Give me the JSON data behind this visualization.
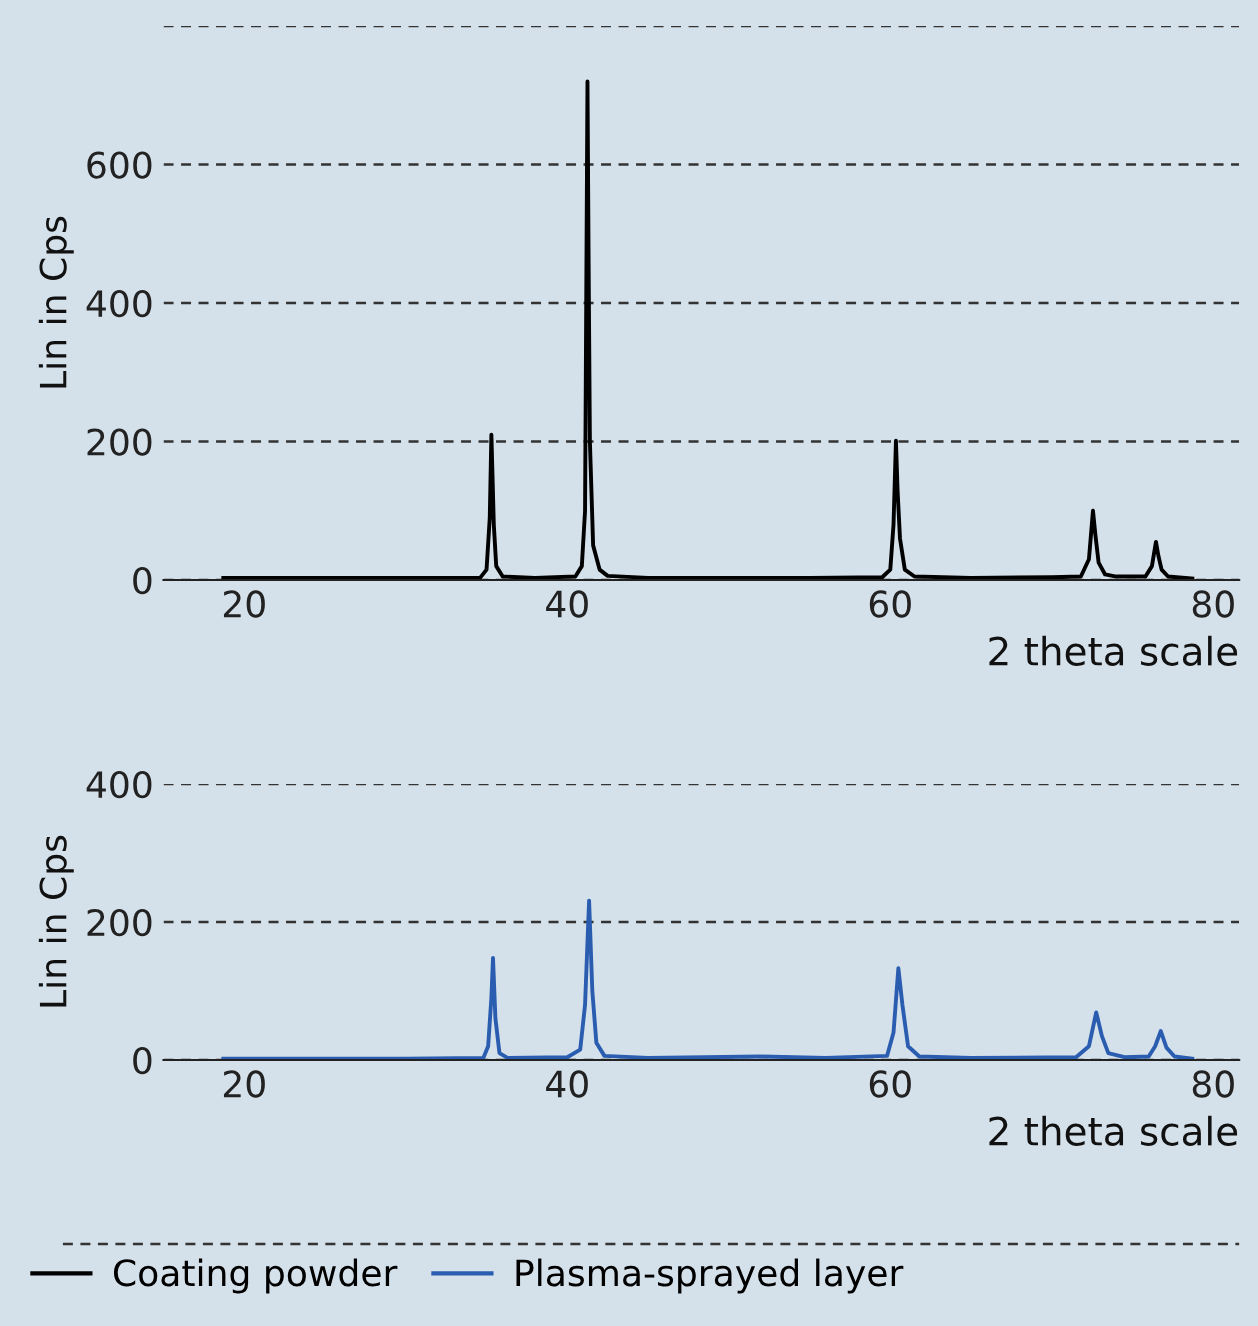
{
  "chart_data": [
    {
      "type": "line",
      "xlabel": "2 theta scale",
      "ylabel": "Lin in Cps",
      "xlim": [
        15,
        81.6
      ],
      "xticks": [
        20,
        40,
        60,
        80
      ],
      "ylim": [
        0,
        800
      ],
      "yticks": [
        0,
        200,
        400,
        600,
        {
          "value": 800,
          "label": null
        }
      ],
      "grid": "y",
      "legend": "bottom",
      "series": [
        {
          "name": "Coating powder",
          "color": "#000000",
          "x": [
            18.7,
            25,
            30,
            34.6,
            35.0,
            35.2,
            35.3,
            35.45,
            35.6,
            36.0,
            38,
            40.5,
            40.9,
            41.1,
            41.25,
            41.32,
            41.4,
            41.6,
            42.0,
            42.5,
            45,
            50,
            55,
            59.5,
            60.0,
            60.2,
            60.35,
            60.45,
            60.6,
            60.9,
            61.5,
            65,
            70,
            71.8,
            72.3,
            72.55,
            72.7,
            72.9,
            73.3,
            74,
            75.8,
            76.2,
            76.45,
            76.6,
            76.8,
            77.2,
            78.7
          ],
          "values": [
            3,
            3,
            3,
            3,
            15,
            90,
            210,
            80,
            20,
            5,
            3,
            5,
            20,
            100,
            720,
            460,
            200,
            50,
            15,
            6,
            3,
            3,
            3,
            4,
            15,
            80,
            201,
            130,
            60,
            15,
            5,
            3,
            4,
            5,
            30,
            100,
            65,
            25,
            8,
            5,
            5,
            20,
            55,
            35,
            15,
            5,
            2
          ]
        }
      ]
    },
    {
      "type": "line",
      "xlabel": "2 theta scale",
      "ylabel": "Lin in Cps",
      "xlim": [
        15,
        81.6
      ],
      "xticks": [
        20,
        40,
        60,
        80
      ],
      "ylim": [
        0,
        400
      ],
      "yticks": [
        0,
        200,
        400
      ],
      "grid": "y",
      "legend": "bottom",
      "series": [
        {
          "name": "Plasma-sprayed layer",
          "color": "#2a5db0",
          "x": [
            18.7,
            25,
            30,
            34.8,
            35.1,
            35.3,
            35.4,
            35.55,
            35.8,
            36.3,
            40,
            40.8,
            41.1,
            41.35,
            41.55,
            41.8,
            42.3,
            45,
            52,
            56,
            59.8,
            60.2,
            60.5,
            60.75,
            61.1,
            61.8,
            65,
            71.5,
            72.3,
            72.75,
            73.1,
            73.5,
            74.5,
            76,
            76.4,
            76.75,
            77.1,
            77.6,
            78.7
          ],
          "values": [
            2,
            2,
            2,
            3,
            20,
            90,
            148,
            60,
            10,
            3,
            4,
            15,
            80,
            231,
            100,
            25,
            6,
            3,
            5,
            3,
            6,
            40,
            133,
            80,
            20,
            5,
            3,
            4,
            20,
            69,
            35,
            10,
            4,
            5,
            20,
            42,
            18,
            5,
            2
          ]
        }
      ]
    }
  ]
}
